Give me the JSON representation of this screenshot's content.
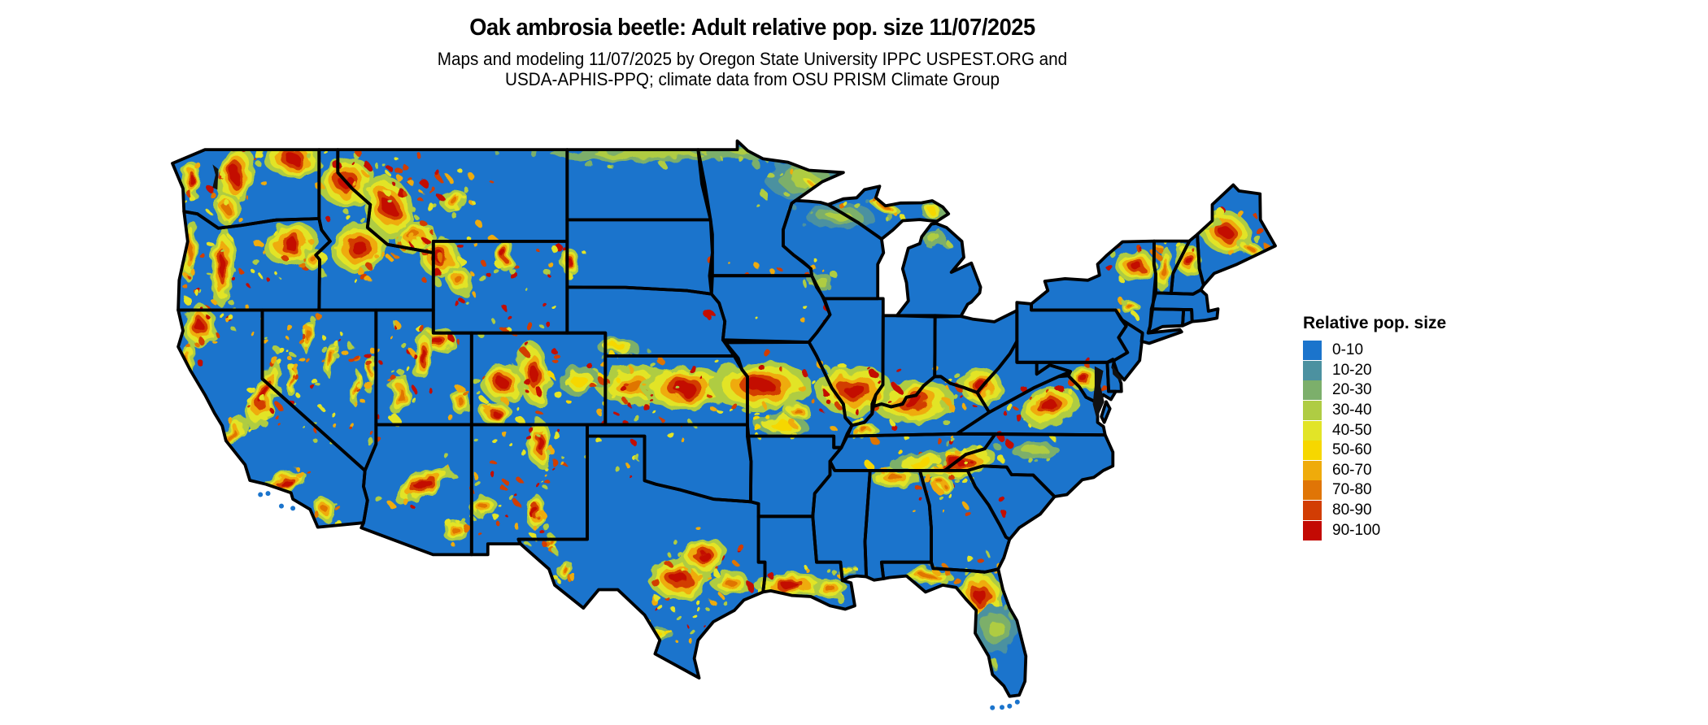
{
  "header": {
    "title": "Oak ambrosia beetle: Adult relative pop. size 11/07/2025",
    "subtitle_line1": "Maps and modeling 11/07/2025 by Oregon State University IPPC USPEST.ORG and",
    "subtitle_line2": "USDA-APHIS-PPQ; climate data from OSU PRISM Climate Group"
  },
  "legend": {
    "title": "Relative pop. size",
    "items": [
      {
        "label": "0-10",
        "color": "#1B74CC"
      },
      {
        "label": "10-20",
        "color": "#4C91A0"
      },
      {
        "label": "20-30",
        "color": "#7CAF6B"
      },
      {
        "label": "30-40",
        "color": "#AFCC43"
      },
      {
        "label": "40-50",
        "color": "#E2E427"
      },
      {
        "label": "50-60",
        "color": "#F6D700"
      },
      {
        "label": "60-70",
        "color": "#EFAB0B"
      },
      {
        "label": "70-80",
        "color": "#E07506"
      },
      {
        "label": "80-90",
        "color": "#D23D04"
      },
      {
        "label": "90-100",
        "color": "#C30A03"
      }
    ]
  },
  "map": {
    "region": "Contiguous United States",
    "base_bin": "0-10",
    "border_color": "#000000",
    "water_color": "#111111",
    "background_color": "#ffffff"
  }
}
